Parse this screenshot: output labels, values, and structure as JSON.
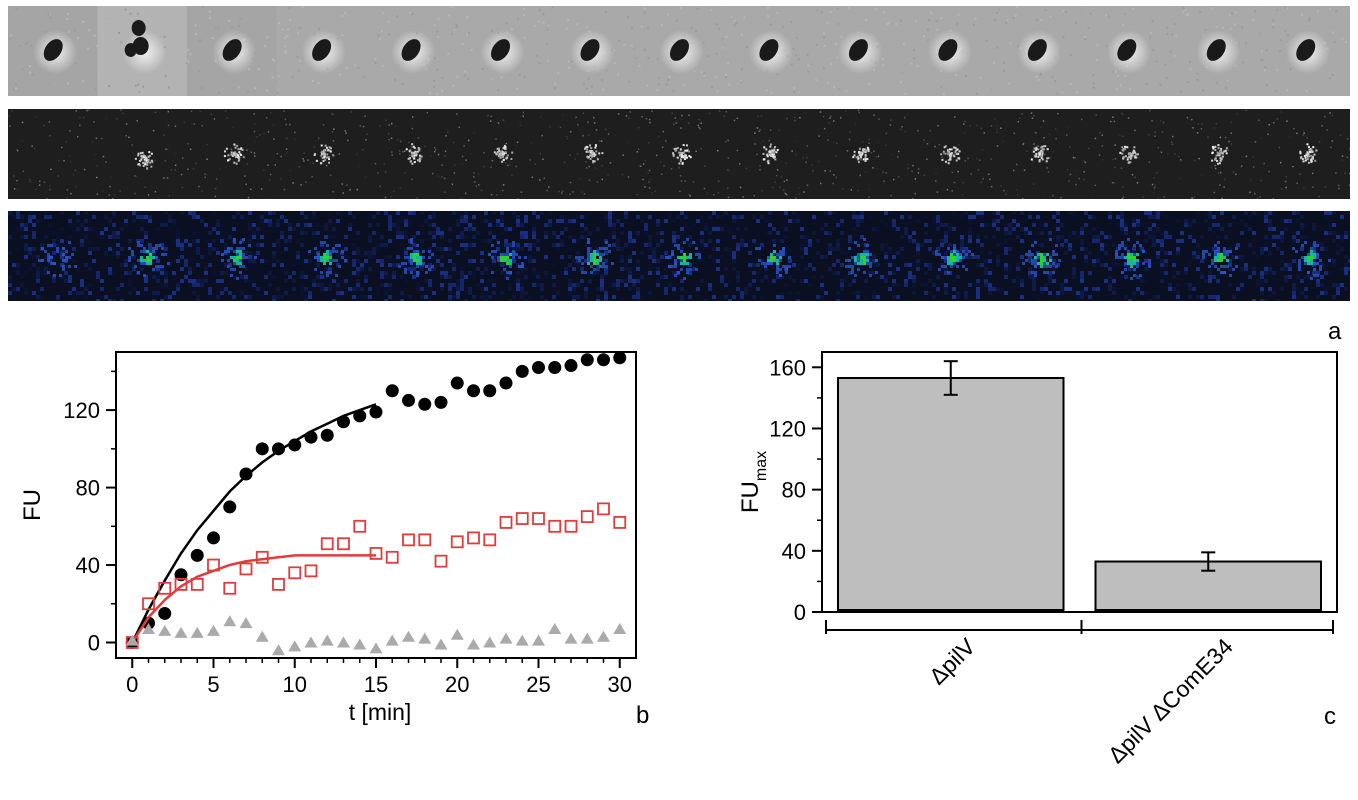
{
  "panel_labels": {
    "a": "a",
    "b": "b",
    "c": "c"
  },
  "strips": {
    "frame_count": 15,
    "brightfield": {
      "bg": "#a9a9a9",
      "cell_color": "#1a1a1a",
      "halo_color": "#f2f2f2"
    },
    "fluorescence": {
      "bg": "#1e1e1e",
      "spot_color": "#d8d8d8"
    },
    "pseudocolor": {
      "bg": "#0b0f22",
      "spot_outer": "#2a55c8",
      "spot_mid": "#18b39a",
      "spot_core": "#2fd02f"
    }
  },
  "chart_data": [
    {
      "type": "scatter",
      "xlabel": "t [min]",
      "ylabel": "FU",
      "xlim": [
        -1,
        31
      ],
      "ylim": [
        -8,
        150
      ],
      "xticks": [
        0,
        5,
        10,
        15,
        20,
        25,
        30
      ],
      "yticks": [
        0,
        40,
        80,
        120
      ],
      "series": [
        {
          "marker": "filled-circle",
          "color": "#000000",
          "x": [
            0,
            1,
            2,
            3,
            4,
            5,
            6,
            7,
            8,
            9,
            10,
            11,
            12,
            13,
            14,
            15,
            16,
            17,
            18,
            19,
            20,
            21,
            22,
            23,
            24,
            25,
            26,
            27,
            28,
            29,
            30
          ],
          "y": [
            0,
            10,
            15,
            35,
            45,
            54,
            70,
            87,
            100,
            100,
            102,
            106,
            107,
            114,
            117,
            119,
            130,
            125,
            123,
            124,
            134,
            130,
            130,
            134,
            140,
            142,
            142,
            143,
            146,
            146,
            147
          ],
          "fit": {
            "x": [
              0,
              1,
              2,
              3,
              4,
              5,
              6,
              7,
              8,
              9,
              10,
              11,
              12,
              13,
              14,
              15
            ],
            "y": [
              0,
              17,
              32,
              46,
              58,
              68,
              78,
              86,
              93,
              99,
              104,
              109,
              113,
              117,
              120,
              123
            ]
          }
        },
        {
          "marker": "open-square",
          "color": "#e03c3c",
          "x": [
            0,
            1,
            2,
            3,
            4,
            5,
            6,
            7,
            8,
            9,
            10,
            11,
            12,
            13,
            14,
            15,
            16,
            17,
            18,
            19,
            20,
            21,
            22,
            23,
            24,
            25,
            26,
            27,
            28,
            29,
            30
          ],
          "y": [
            0,
            20,
            28,
            30,
            30,
            40,
            28,
            38,
            44,
            30,
            36,
            37,
            51,
            51,
            60,
            46,
            44,
            53,
            53,
            42,
            52,
            54,
            53,
            62,
            64,
            64,
            60,
            60,
            65,
            69,
            62
          ],
          "fit": {
            "x": [
              0,
              1,
              2,
              3,
              4,
              5,
              6,
              7,
              8,
              9,
              10,
              11,
              12,
              13,
              14,
              15
            ],
            "y": [
              0,
              13,
              22,
              29,
              34,
              37,
              40,
              42,
              43,
              44,
              45,
              45,
              45,
              45,
              45,
              45
            ]
          }
        },
        {
          "marker": "filled-triangle",
          "color": "#aaaaaa",
          "x": [
            0,
            1,
            2,
            3,
            4,
            5,
            6,
            7,
            8,
            9,
            10,
            11,
            12,
            13,
            14,
            15,
            16,
            17,
            18,
            19,
            20,
            21,
            22,
            23,
            24,
            25,
            26,
            27,
            28,
            29,
            30
          ],
          "y": [
            1,
            7,
            6,
            5,
            5,
            6,
            11,
            10,
            3,
            -4,
            -2,
            0,
            1,
            0,
            -1,
            -3,
            1,
            3,
            2,
            -1,
            4,
            -1,
            0,
            2,
            1,
            1,
            7,
            2,
            2,
            3,
            7
          ]
        }
      ]
    },
    {
      "type": "bar",
      "ylabel": "FU",
      "ylabel_sub": "max",
      "ylim": [
        0,
        170
      ],
      "yticks": [
        0,
        40,
        80,
        120,
        160
      ],
      "categories": [
        "ΔpilV",
        "ΔpilV ΔComE34"
      ],
      "values": [
        153,
        33
      ],
      "errors": [
        11,
        6
      ],
      "bar_color": "#bebebe"
    }
  ]
}
